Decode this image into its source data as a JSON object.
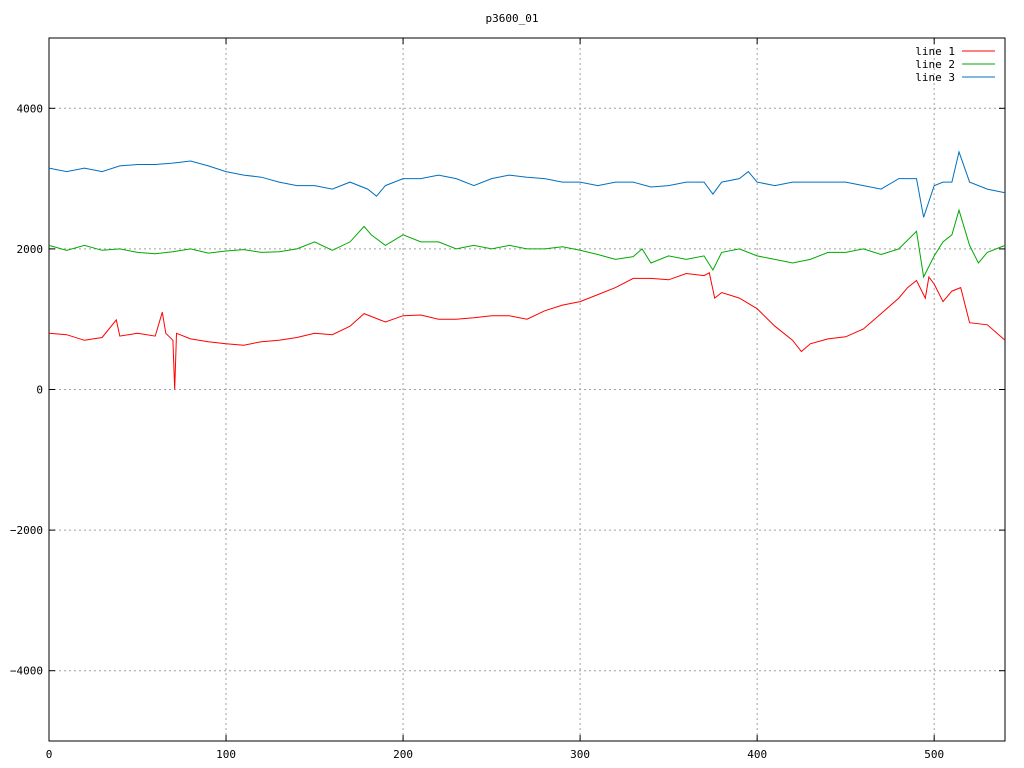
{
  "chart_data": {
    "type": "line",
    "title": "p3600_01",
    "xlabel": "",
    "ylabel": "",
    "xlim": [
      0,
      540
    ],
    "ylim": [
      -5000,
      5000
    ],
    "x_ticks": [
      0,
      100,
      200,
      300,
      400,
      500
    ],
    "y_ticks": [
      -4000,
      -2000,
      0,
      2000,
      4000
    ],
    "y_tick_labels": [
      "−4000",
      "−2000",
      "0",
      "2000",
      "4000"
    ],
    "grid": true,
    "legend_position": "top-right",
    "series": [
      {
        "name": "line 1",
        "color": "#ff0000",
        "points": [
          [
            0,
            800
          ],
          [
            10,
            780
          ],
          [
            20,
            700
          ],
          [
            30,
            740
          ],
          [
            38,
            990
          ],
          [
            40,
            760
          ],
          [
            50,
            800
          ],
          [
            60,
            760
          ],
          [
            64,
            1100
          ],
          [
            66,
            800
          ],
          [
            70,
            700
          ],
          [
            71,
            0
          ],
          [
            72,
            800
          ],
          [
            80,
            720
          ],
          [
            90,
            680
          ],
          [
            100,
            650
          ],
          [
            110,
            630
          ],
          [
            120,
            680
          ],
          [
            130,
            700
          ],
          [
            140,
            740
          ],
          [
            150,
            800
          ],
          [
            160,
            780
          ],
          [
            170,
            900
          ],
          [
            178,
            1080
          ],
          [
            190,
            960
          ],
          [
            200,
            1050
          ],
          [
            210,
            1060
          ],
          [
            220,
            1000
          ],
          [
            230,
            1000
          ],
          [
            240,
            1020
          ],
          [
            250,
            1050
          ],
          [
            260,
            1050
          ],
          [
            270,
            1000
          ],
          [
            280,
            1120
          ],
          [
            290,
            1200
          ],
          [
            300,
            1250
          ],
          [
            310,
            1350
          ],
          [
            320,
            1450
          ],
          [
            330,
            1580
          ],
          [
            340,
            1580
          ],
          [
            350,
            1560
          ],
          [
            360,
            1650
          ],
          [
            370,
            1620
          ],
          [
            373,
            1660
          ],
          [
            376,
            1300
          ],
          [
            380,
            1380
          ],
          [
            390,
            1300
          ],
          [
            400,
            1150
          ],
          [
            410,
            900
          ],
          [
            420,
            700
          ],
          [
            425,
            540
          ],
          [
            430,
            650
          ],
          [
            440,
            720
          ],
          [
            450,
            750
          ],
          [
            460,
            860
          ],
          [
            470,
            1080
          ],
          [
            480,
            1300
          ],
          [
            485,
            1450
          ],
          [
            490,
            1550
          ],
          [
            495,
            1300
          ],
          [
            497,
            1600
          ],
          [
            500,
            1500
          ],
          [
            505,
            1250
          ],
          [
            510,
            1400
          ],
          [
            515,
            1450
          ],
          [
            520,
            950
          ],
          [
            530,
            920
          ],
          [
            540,
            700
          ]
        ]
      },
      {
        "name": "line 2",
        "color": "#00aa00",
        "points": [
          [
            0,
            2050
          ],
          [
            10,
            1980
          ],
          [
            20,
            2050
          ],
          [
            30,
            1980
          ],
          [
            40,
            2000
          ],
          [
            50,
            1950
          ],
          [
            60,
            1930
          ],
          [
            70,
            1960
          ],
          [
            80,
            2000
          ],
          [
            90,
            1940
          ],
          [
            100,
            1970
          ],
          [
            110,
            1990
          ],
          [
            120,
            1950
          ],
          [
            130,
            1960
          ],
          [
            140,
            2000
          ],
          [
            150,
            2100
          ],
          [
            160,
            1980
          ],
          [
            170,
            2100
          ],
          [
            178,
            2320
          ],
          [
            182,
            2200
          ],
          [
            190,
            2050
          ],
          [
            200,
            2200
          ],
          [
            210,
            2100
          ],
          [
            220,
            2100
          ],
          [
            230,
            2000
          ],
          [
            240,
            2050
          ],
          [
            250,
            2000
          ],
          [
            260,
            2050
          ],
          [
            270,
            2000
          ],
          [
            280,
            2000
          ],
          [
            290,
            2030
          ],
          [
            300,
            1980
          ],
          [
            310,
            1920
          ],
          [
            320,
            1850
          ],
          [
            330,
            1890
          ],
          [
            335,
            2000
          ],
          [
            340,
            1800
          ],
          [
            350,
            1900
          ],
          [
            360,
            1850
          ],
          [
            370,
            1900
          ],
          [
            375,
            1700
          ],
          [
            380,
            1950
          ],
          [
            390,
            2000
          ],
          [
            400,
            1900
          ],
          [
            410,
            1850
          ],
          [
            420,
            1800
          ],
          [
            430,
            1850
          ],
          [
            440,
            1950
          ],
          [
            450,
            1950
          ],
          [
            460,
            2000
          ],
          [
            470,
            1920
          ],
          [
            480,
            2000
          ],
          [
            490,
            2250
          ],
          [
            494,
            1600
          ],
          [
            500,
            1900
          ],
          [
            505,
            2100
          ],
          [
            510,
            2200
          ],
          [
            514,
            2550
          ],
          [
            520,
            2050
          ],
          [
            525,
            1800
          ],
          [
            530,
            1950
          ],
          [
            540,
            2050
          ]
        ]
      },
      {
        "name": "line 3",
        "color": "#0070c0",
        "points": [
          [
            0,
            3150
          ],
          [
            10,
            3100
          ],
          [
            20,
            3150
          ],
          [
            30,
            3100
          ],
          [
            40,
            3180
          ],
          [
            50,
            3200
          ],
          [
            60,
            3200
          ],
          [
            70,
            3220
          ],
          [
            80,
            3250
          ],
          [
            90,
            3180
          ],
          [
            100,
            3100
          ],
          [
            110,
            3050
          ],
          [
            120,
            3020
          ],
          [
            130,
            2950
          ],
          [
            140,
            2900
          ],
          [
            150,
            2900
          ],
          [
            160,
            2850
          ],
          [
            170,
            2950
          ],
          [
            180,
            2850
          ],
          [
            185,
            2750
          ],
          [
            190,
            2900
          ],
          [
            200,
            3000
          ],
          [
            210,
            3000
          ],
          [
            220,
            3050
          ],
          [
            230,
            3000
          ],
          [
            240,
            2900
          ],
          [
            250,
            3000
          ],
          [
            260,
            3050
          ],
          [
            270,
            3020
          ],
          [
            280,
            3000
          ],
          [
            290,
            2950
          ],
          [
            300,
            2950
          ],
          [
            310,
            2900
          ],
          [
            320,
            2950
          ],
          [
            330,
            2950
          ],
          [
            340,
            2880
          ],
          [
            350,
            2900
          ],
          [
            360,
            2950
          ],
          [
            370,
            2950
          ],
          [
            375,
            2780
          ],
          [
            380,
            2950
          ],
          [
            390,
            3000
          ],
          [
            395,
            3100
          ],
          [
            400,
            2950
          ],
          [
            410,
            2900
          ],
          [
            420,
            2950
          ],
          [
            430,
            2950
          ],
          [
            440,
            2950
          ],
          [
            450,
            2950
          ],
          [
            460,
            2900
          ],
          [
            470,
            2850
          ],
          [
            480,
            3000
          ],
          [
            490,
            3000
          ],
          [
            494,
            2450
          ],
          [
            500,
            2900
          ],
          [
            505,
            2950
          ],
          [
            510,
            2950
          ],
          [
            514,
            3380
          ],
          [
            520,
            2950
          ],
          [
            530,
            2850
          ],
          [
            540,
            2800
          ]
        ]
      }
    ]
  }
}
